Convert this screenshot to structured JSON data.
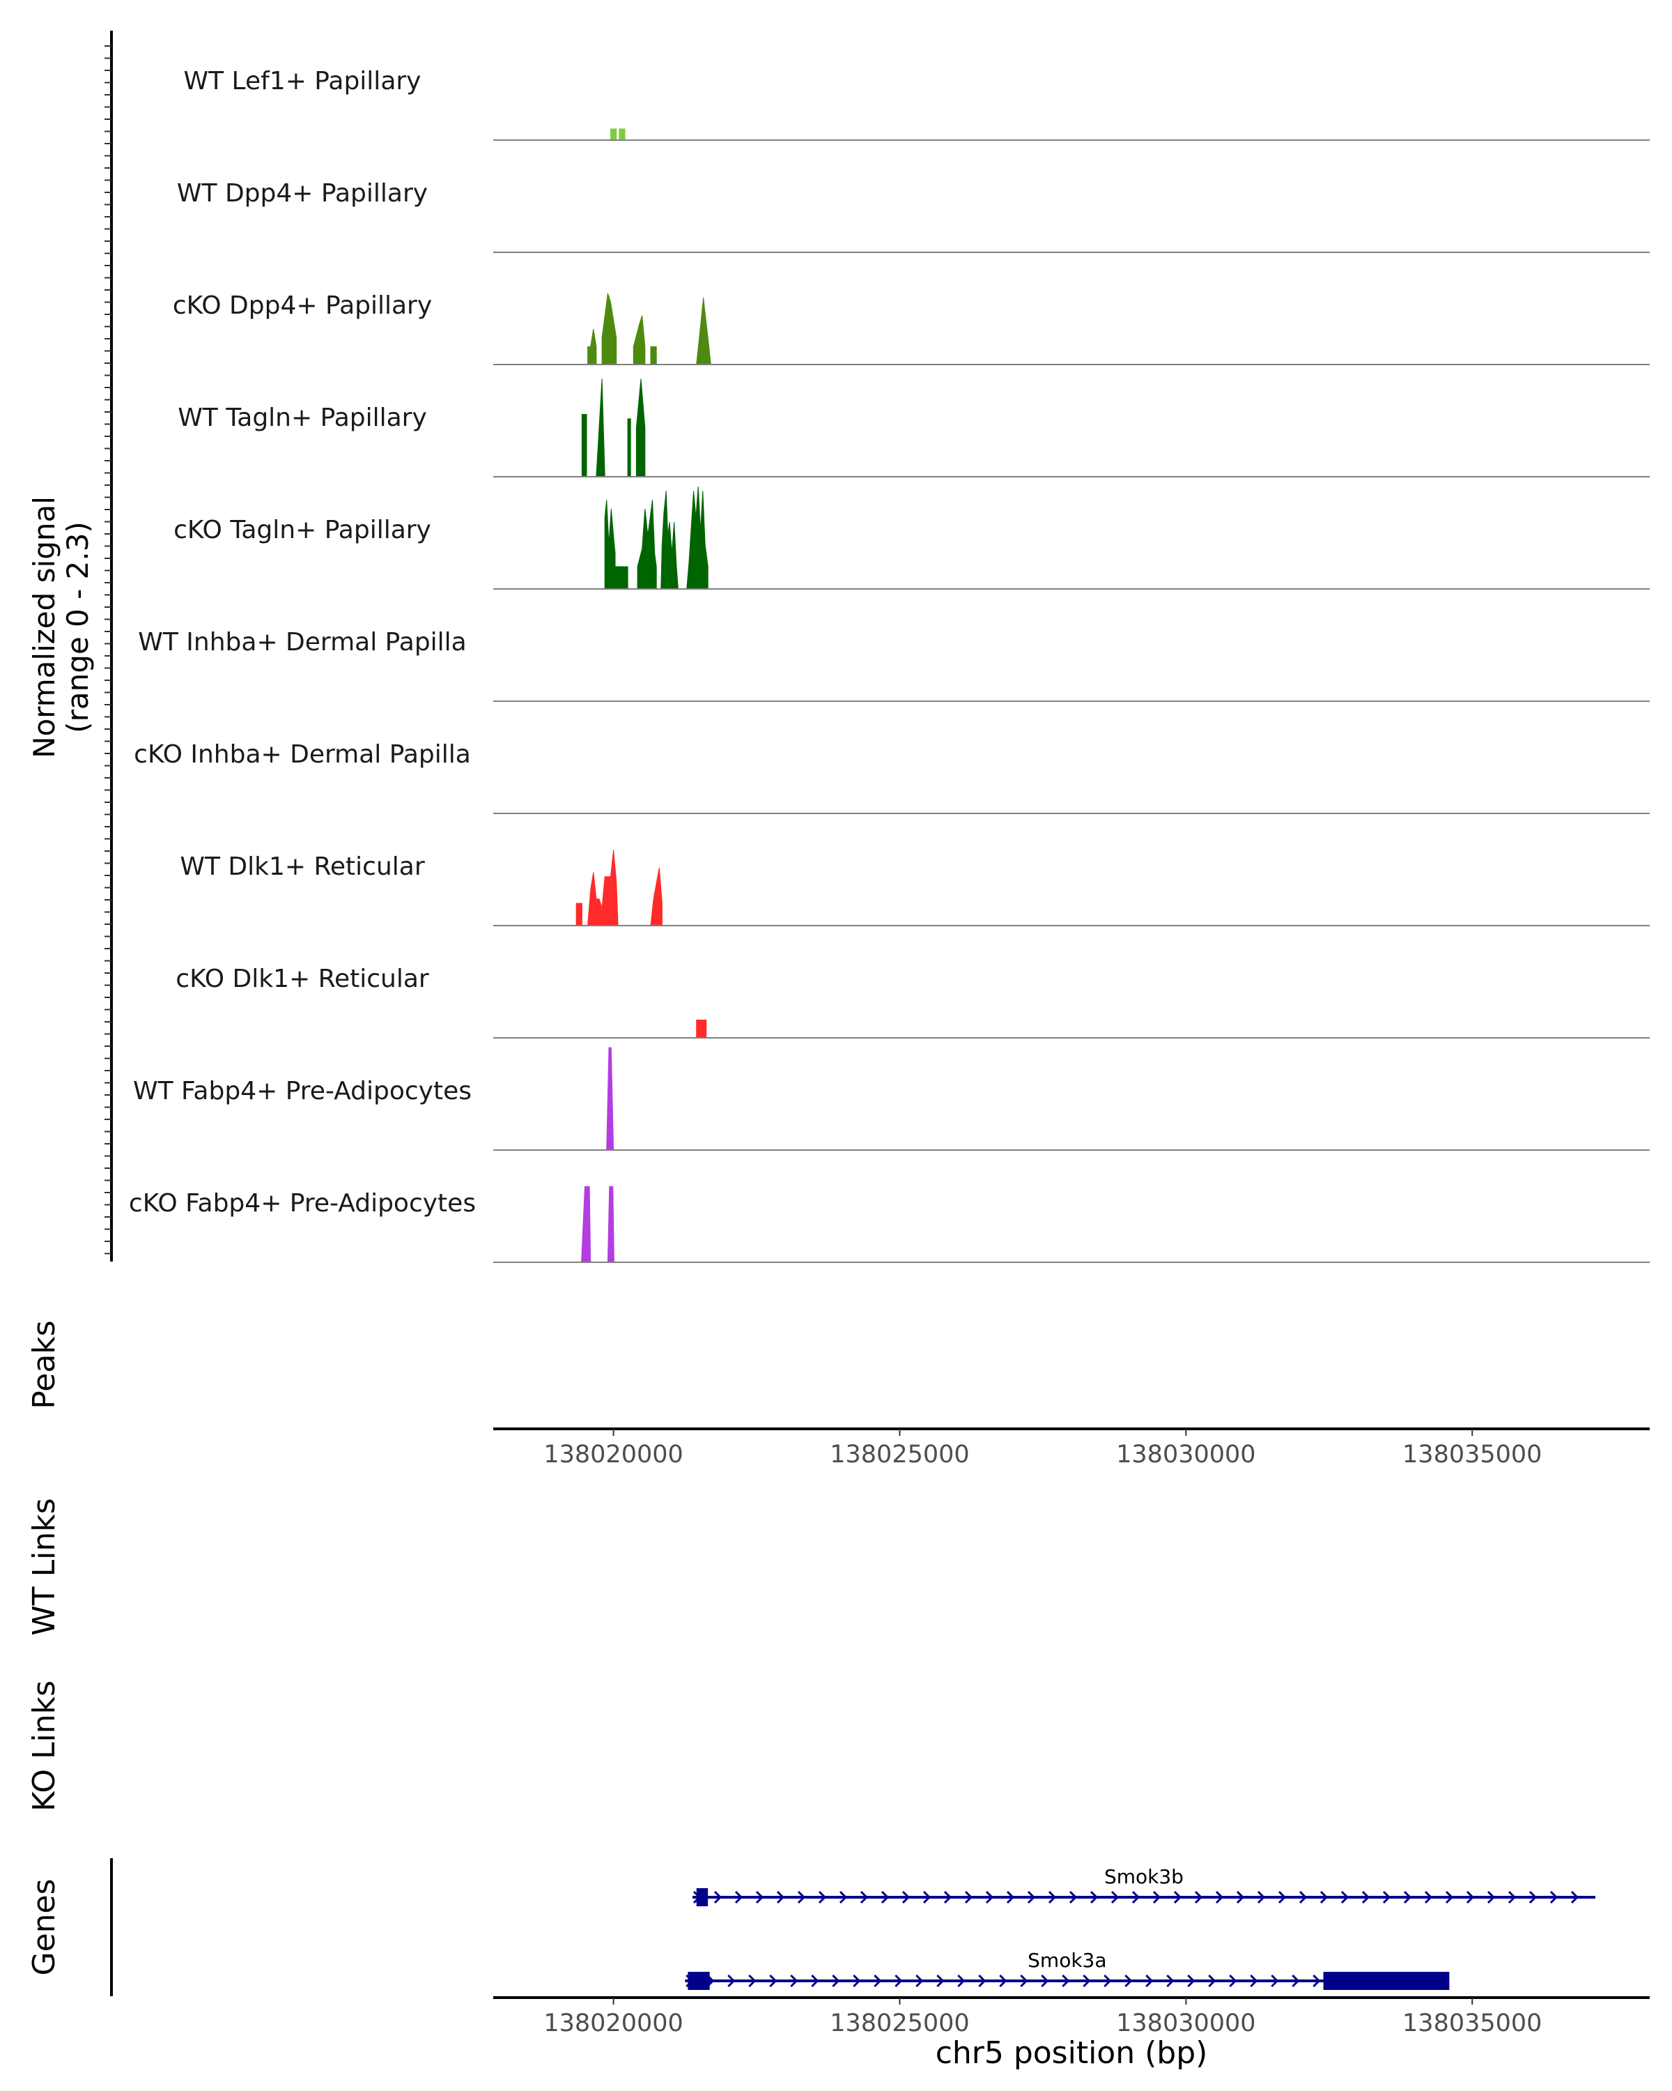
{
  "chart_data": {
    "type": "area",
    "title": "",
    "signal_axis_label": [
      "Normalized signal",
      "(range 0 - 2.3)"
    ],
    "ylim": [
      0,
      2.3
    ],
    "xlim": [
      138017900,
      138038100
    ],
    "xlabel": "chr5 position (bp)",
    "x_ticks": [
      138020000,
      138025000,
      138030000,
      138035000
    ],
    "x_tick_labels": [
      "138020000",
      "138025000",
      "138030000",
      "138035000"
    ],
    "tracks": [
      {
        "label": "WT Lef1+ Papillary",
        "color": "#7ccd3c",
        "points": [
          [
            138019950,
            0
          ],
          [
            138019950,
            0.25
          ],
          [
            138020050,
            0.25
          ],
          [
            138020050,
            0
          ],
          [
            138020100,
            0
          ],
          [
            138020100,
            0.25
          ],
          [
            138020200,
            0.25
          ],
          [
            138020200,
            0
          ]
        ]
      },
      {
        "label": "WT Dpp4+ Papillary",
        "color": "#5f9e1f",
        "points": []
      },
      {
        "label": "cKO Dpp4+ Papillary",
        "color": "#4d8a0f",
        "points": [
          [
            138019550,
            0
          ],
          [
            138019550,
            0.4
          ],
          [
            138019600,
            0.4
          ],
          [
            138019650,
            0.8
          ],
          [
            138019700,
            0.4
          ],
          [
            138019700,
            0
          ],
          [
            138019800,
            0
          ],
          [
            138019800,
            0.6
          ],
          [
            138019900,
            1.6
          ],
          [
            138019950,
            1.4
          ],
          [
            138020050,
            0.6
          ],
          [
            138020050,
            0
          ],
          [
            138020350,
            0
          ],
          [
            138020350,
            0.4
          ],
          [
            138020450,
            0.9
          ],
          [
            138020500,
            1.1
          ],
          [
            138020550,
            0.4
          ],
          [
            138020550,
            0
          ],
          [
            138020650,
            0
          ],
          [
            138020650,
            0.4
          ],
          [
            138020750,
            0.4
          ],
          [
            138020750,
            0
          ],
          [
            138021450,
            0
          ],
          [
            138021500,
            0.6
          ],
          [
            138021570,
            1.5
          ],
          [
            138021650,
            0.6
          ],
          [
            138021700,
            0
          ]
        ]
      },
      {
        "label": "WT Tagln+ Papillary",
        "color": "#006400",
        "points": [
          [
            138019450,
            0
          ],
          [
            138019450,
            1.4
          ],
          [
            138019530,
            1.4
          ],
          [
            138019530,
            0
          ],
          [
            138019700,
            0
          ],
          [
            138019800,
            2.2
          ],
          [
            138019850,
            0
          ],
          [
            138020250,
            0
          ],
          [
            138020250,
            1.3
          ],
          [
            138020300,
            1.3
          ],
          [
            138020300,
            0
          ],
          [
            138020400,
            0
          ],
          [
            138020400,
            1.1
          ],
          [
            138020480,
            2.2
          ],
          [
            138020550,
            1.1
          ],
          [
            138020550,
            0
          ]
        ]
      },
      {
        "label": "cKO Tagln+ Papillary",
        "color": "#006400",
        "points": [
          [
            138019850,
            0
          ],
          [
            138019850,
            1.6
          ],
          [
            138019880,
            2.0
          ],
          [
            138019920,
            1.0
          ],
          [
            138019960,
            1.8
          ],
          [
            138020000,
            1.2
          ],
          [
            138020030,
            0.8
          ],
          [
            138020030,
            0.5
          ],
          [
            138020250,
            0.5
          ],
          [
            138020250,
            0
          ],
          [
            138020420,
            0
          ],
          [
            138020420,
            0.5
          ],
          [
            138020500,
            0.9
          ],
          [
            138020550,
            1.8
          ],
          [
            138020600,
            1.2
          ],
          [
            138020680,
            2.0
          ],
          [
            138020720,
            0.8
          ],
          [
            138020750,
            0.5
          ],
          [
            138020750,
            0
          ],
          [
            138020830,
            0
          ],
          [
            138020850,
            1.0
          ],
          [
            138020880,
            1.7
          ],
          [
            138020920,
            2.2
          ],
          [
            138020950,
            1.2
          ],
          [
            138020980,
            1.5
          ],
          [
            138021020,
            0.8
          ],
          [
            138021060,
            1.5
          ],
          [
            138021100,
            0.5
          ],
          [
            138021130,
            0
          ],
          [
            138021280,
            0
          ],
          [
            138021320,
            0.6
          ],
          [
            138021360,
            1.4
          ],
          [
            138021400,
            2.2
          ],
          [
            138021440,
            1.6
          ],
          [
            138021480,
            2.3
          ],
          [
            138021520,
            1.3
          ],
          [
            138021560,
            2.2
          ],
          [
            138021600,
            1.0
          ],
          [
            138021650,
            0.5
          ],
          [
            138021650,
            0
          ]
        ]
      },
      {
        "label": "WT Inhba+ Dermal Papilla",
        "color": "#e9967a",
        "points": []
      },
      {
        "label": "cKO Inhba+ Dermal Papilla",
        "color": "#e9967a",
        "points": []
      },
      {
        "label": "WT Dlk1+ Reticular",
        "color": "#ff2a2a",
        "points": [
          [
            138019350,
            0
          ],
          [
            138019350,
            0.5
          ],
          [
            138019450,
            0.5
          ],
          [
            138019450,
            0
          ],
          [
            138019550,
            0
          ],
          [
            138019600,
            0.8
          ],
          [
            138019650,
            1.2
          ],
          [
            138019700,
            0.6
          ],
          [
            138019750,
            0.6
          ],
          [
            138019800,
            0.4
          ],
          [
            138019850,
            1.1
          ],
          [
            138019950,
            1.1
          ],
          [
            138020000,
            1.7
          ],
          [
            138020050,
            1.0
          ],
          [
            138020080,
            0
          ],
          [
            138020650,
            0
          ],
          [
            138020700,
            0.6
          ],
          [
            138020800,
            1.3
          ],
          [
            138020850,
            0.5
          ],
          [
            138020850,
            0
          ]
        ]
      },
      {
        "label": "cKO Dlk1+ Reticular",
        "color": "#ff2a2a",
        "points": [
          [
            138021450,
            0
          ],
          [
            138021450,
            0.4
          ],
          [
            138021620,
            0.4
          ],
          [
            138021620,
            0
          ]
        ]
      },
      {
        "label": "WT Fabp4+ Pre-Adipocytes",
        "color": "#b23ee0",
        "points": [
          [
            138019880,
            0
          ],
          [
            138019920,
            2.3
          ],
          [
            138019960,
            2.3
          ],
          [
            138020000,
            0
          ]
        ]
      },
      {
        "label": "cKO Fabp4+ Pre-Adipocytes",
        "color": "#b23ee0",
        "points": [
          [
            138019440,
            0
          ],
          [
            138019500,
            1.7
          ],
          [
            138019580,
            1.7
          ],
          [
            138019600,
            0
          ],
          [
            138019900,
            0
          ],
          [
            138019930,
            1.7
          ],
          [
            138019990,
            1.7
          ],
          [
            138020010,
            0
          ]
        ]
      }
    ],
    "panels": [
      {
        "label": "Peaks",
        "items": []
      },
      {
        "label": "WT Links",
        "items": []
      },
      {
        "label": "KO Links",
        "items": []
      }
    ],
    "genes": {
      "label": "Genes",
      "color": "#00008b",
      "items": [
        {
          "name": "Smok3b",
          "start": 138021380,
          "end": 138037150,
          "strand": "+",
          "exons": [
            [
              138021450,
              138021650
            ]
          ]
        },
        {
          "name": "Smok3a",
          "start": 138021250,
          "end": 138034600,
          "strand": "+",
          "exons": [
            [
              138021300,
              138021680
            ],
            [
              138032400,
              138034600
            ]
          ]
        }
      ]
    }
  }
}
